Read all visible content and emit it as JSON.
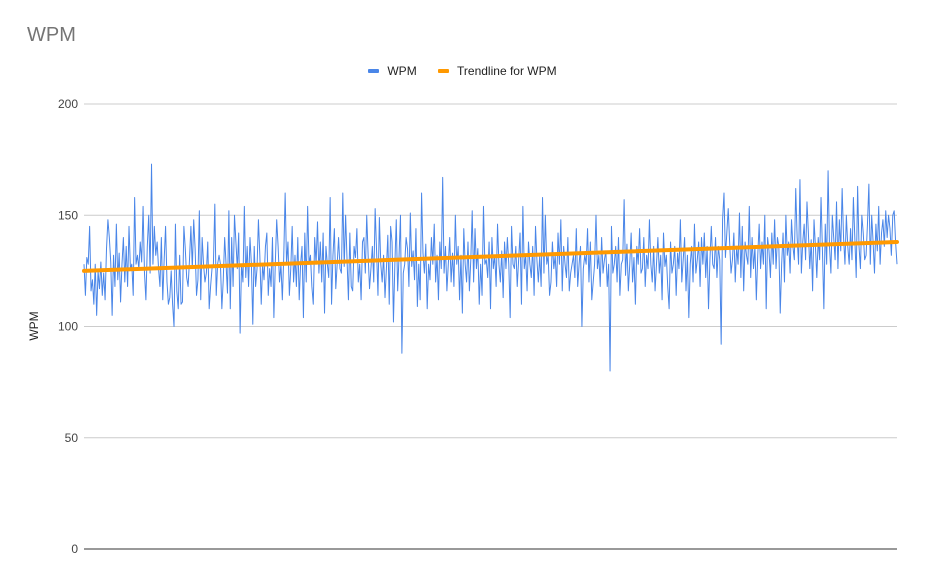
{
  "chart_data": {
    "type": "line",
    "title": "WPM",
    "xlabel": "",
    "ylabel": "WPM",
    "ylim": [
      0,
      200
    ],
    "yticks": [
      "0",
      "50",
      "100",
      "150",
      "200"
    ],
    "grid": true,
    "legend_position": "top",
    "series": [
      {
        "name": "WPM",
        "color": "#4a86e8",
        "values": [
          128,
          114,
          131,
          128,
          145,
          116,
          121,
          110,
          128,
          105,
          125,
          117,
          129,
          114,
          124,
          112,
          135,
          148,
          140,
          129,
          105,
          132,
          118,
          146,
          121,
          133,
          111,
          128,
          140,
          120,
          136,
          118,
          145,
          126,
          128,
          114,
          158,
          128,
          132,
          126,
          138,
          129,
          154,
          124,
          112,
          136,
          150,
          124,
          173,
          128,
          145,
          132,
          138,
          126,
          118,
          140,
          112,
          130,
          145,
          120,
          110,
          113,
          125,
          110,
          100,
          146,
          116,
          108,
          132,
          110,
          111,
          145,
          135,
          122,
          118,
          130,
          145,
          126,
          148,
          135,
          114,
          121,
          152,
          112,
          140,
          128,
          120,
          124,
          138,
          108,
          118,
          126,
          128,
          155,
          114,
          128,
          132,
          128,
          108,
          121,
          140,
          128,
          115,
          152,
          108,
          140,
          118,
          150,
          138,
          126,
          142,
          97,
          128,
          120,
          154,
          122,
          136,
          118,
          140,
          128,
          101,
          136,
          118,
          126,
          148,
          132,
          110,
          128,
          121,
          136,
          142,
          114,
          126,
          118,
          140,
          104,
          128,
          148,
          136,
          120,
          128,
          112,
          131,
          160,
          128,
          138,
          114,
          126,
          145,
          120,
          132,
          118,
          140,
          112,
          128,
          136,
          104,
          142,
          120,
          154,
          128,
          132,
          118,
          110,
          140,
          128,
          147,
          124,
          138,
          120,
          142,
          106,
          136,
          128,
          122,
          158,
          110,
          132,
          144,
          117,
          128,
          140,
          126,
          124,
          160,
          127,
          150,
          130,
          112,
          142,
          118,
          116,
          136,
          131,
          144,
          120,
          128,
          112,
          138,
          140,
          124,
          150,
          132,
          117,
          126,
          136,
          120,
          153,
          134,
          114,
          149,
          128,
          120,
          132,
          113,
          126,
          141,
          110,
          145,
          138,
          102,
          128,
          148,
          116,
          132,
          150,
          88,
          124,
          128,
          140,
          135,
          118,
          151,
          127,
          134,
          121,
          144,
          109,
          128,
          112,
          160,
          133,
          124,
          137,
          108,
          128,
          121,
          140,
          128,
          146,
          120,
          132,
          112,
          138,
          126,
          167,
          124,
          136,
          116,
          128,
          140,
          120,
          133,
          118,
          150,
          128,
          136,
          112,
          132,
          106,
          144,
          128,
          120,
          138,
          116,
          130,
          152,
          120,
          144,
          126,
          135,
          110,
          128,
          114,
          154,
          128,
          130,
          122,
          138,
          108,
          140,
          126,
          132,
          118,
          146,
          128,
          120,
          134,
          113,
          138,
          126,
          140,
          128,
          104,
          145,
          128,
          126,
          136,
          118,
          130,
          142,
          110,
          154,
          126,
          132,
          116,
          138,
          128,
          122,
          136,
          114,
          145,
          130,
          120,
          132,
          118,
          158,
          124,
          150,
          128,
          132,
          114,
          120,
          138,
          126,
          132,
          118,
          142,
          128,
          148,
          116,
          136,
          128,
          122,
          140,
          116,
          124,
          128,
          132,
          122,
          144,
          118,
          128,
          136,
          100,
          126,
          132,
          128,
          144,
          120,
          138,
          112,
          120,
          128,
          150,
          126,
          132,
          118,
          140,
          124,
          130,
          134,
          118,
          128,
          80,
          145,
          124,
          128,
          136,
          120,
          140,
          114,
          128,
          130,
          157,
          123,
          137,
          116,
          128,
          142,
          120,
          131,
          110,
          136,
          128,
          144,
          124,
          126,
          140,
          118,
          132,
          126,
          148,
          128,
          120,
          136,
          116,
          128,
          140,
          124,
          132,
          112,
          142,
          127,
          132,
          118,
          108,
          138,
          124,
          128,
          136,
          114,
          133,
          126,
          148,
          120,
          130,
          140,
          116,
          132,
          104,
          128,
          136,
          120,
          146,
          124,
          130,
          138,
          118,
          140,
          128,
          142,
          122,
          136,
          108,
          130,
          145,
          128,
          126,
          140,
          122,
          136,
          130,
          92,
          148,
          160,
          131,
          142,
          153,
          138,
          124,
          130,
          142,
          120,
          136,
          128,
          151,
          122,
          145,
          116,
          138,
          132,
          128,
          154,
          122,
          140,
          126,
          136,
          112,
          132,
          146,
          126,
          138,
          128,
          150,
          108,
          140,
          134,
          122,
          142,
          128,
          148,
          126,
          140,
          136,
          106,
          128,
          142,
          120,
          150,
          132,
          138,
          124,
          148,
          136,
          130,
          162,
          140,
          128,
          166,
          124,
          138,
          146,
          130,
          156,
          142,
          126,
          139,
          116,
          148,
          136,
          122,
          140,
          130,
          158,
          134,
          108,
          146,
          128,
          170,
          136,
          124,
          150,
          140,
          130,
          156,
          126,
          148,
          134,
          162,
          140,
          128,
          150,
          136,
          128,
          144,
          130,
          158,
          140,
          122,
          163,
          136,
          126,
          150,
          142,
          130,
          132,
          146,
          164,
          128,
          150,
          138,
          124,
          146,
          134,
          154,
          128,
          142,
          148,
          136,
          152,
          140,
          150,
          144,
          132,
          150,
          152,
          138,
          128
        ]
      },
      {
        "name": "Trendline for WPM",
        "color": "#ff9900",
        "trend": [
          125,
          138
        ]
      }
    ]
  }
}
